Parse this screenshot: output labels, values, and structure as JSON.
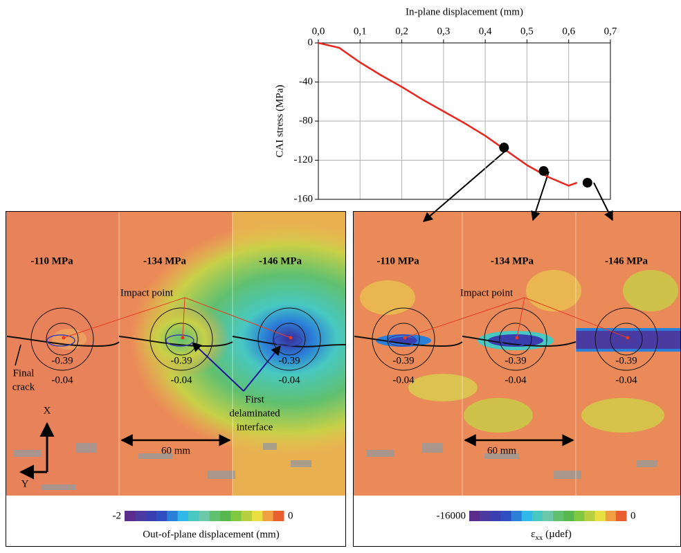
{
  "chart_data": {
    "type": "line",
    "x_label": "In-plane displacement (mm)",
    "y_label": "CAI stress (MPa)",
    "x": [
      0,
      0.05,
      0.1,
      0.15,
      0.2,
      0.25,
      0.3,
      0.35,
      0.4,
      0.45,
      0.5,
      0.55,
      0.6,
      0.62
    ],
    "series": [
      {
        "color": "#e8261e",
        "values": [
          0,
          -5,
          -20,
          -33,
          -45,
          -58,
          -70,
          -82,
          -95,
          -110,
          -125,
          -137,
          -146,
          -143
        ]
      }
    ],
    "markers": {
      "color": "#000000",
      "x": [
        0.445,
        0.54,
        0.645
      ],
      "values": [
        -107,
        -131,
        -143
      ]
    },
    "xlim": [
      0,
      0.7
    ],
    "xticks": [
      {
        "value": 0,
        "label": "0,0"
      },
      {
        "value": 0.1,
        "label": "0,1"
      },
      {
        "value": 0.2,
        "label": "0,2"
      },
      {
        "value": 0.3,
        "label": "0,3"
      },
      {
        "value": 0.4,
        "label": "0,4"
      },
      {
        "value": 0.5,
        "label": "0,5"
      },
      {
        "value": 0.6,
        "label": "0,6"
      },
      {
        "value": 0.7,
        "label": "0,7"
      }
    ],
    "ylim": [
      -160,
      0
    ],
    "yticks": [
      0,
      -40,
      -80,
      -120,
      -160
    ],
    "grid": true
  },
  "panels": [
    {
      "stages": [
        {
          "stress": "-110 MPa",
          "inner": "-0.39",
          "outer": "-0.04"
        },
        {
          "stress": "-134 MPa",
          "inner": "-0.39",
          "outer": "-0.04"
        },
        {
          "stress": "-146 MPa",
          "inner": "-0.39",
          "outer": "-0.04"
        }
      ],
      "impact": "Impact point",
      "crack": [
        "Final",
        "crack"
      ],
      "delamination": [
        "First",
        "delaminated",
        "interface"
      ],
      "axis_x": "X",
      "axis_y": "Y",
      "scale": "60 mm",
      "colorbar": {
        "min": "-2",
        "max": "0",
        "label": "Out-of-plane displacement (mm)"
      }
    },
    {
      "stages": [
        {
          "stress": "-110 MPa",
          "inner": "-0.39",
          "outer": "-0.04"
        },
        {
          "stress": "-134 MPa",
          "inner": "-0.39",
          "outer": "-0.04"
        },
        {
          "stress": "-146 MPa",
          "inner": "-0.39",
          "outer": "-0.04"
        }
      ],
      "impact": "Impact point",
      "scale": "60 mm",
      "colorbar": {
        "min": "-16000",
        "max": "0",
        "symbol": "ε",
        "subscript": "xx",
        "unit": "(µdef)"
      }
    }
  ],
  "colormap": [
    "#5a2d8c",
    "#4b3aa0",
    "#3a3fb0",
    "#2f4fc0",
    "#2a7fd8",
    "#30b8e8",
    "#48c8c0",
    "#6cc8a8",
    "#60c070",
    "#58b850",
    "#80c840",
    "#b8d040",
    "#e8e040",
    "#f0a040",
    "#e86030"
  ]
}
